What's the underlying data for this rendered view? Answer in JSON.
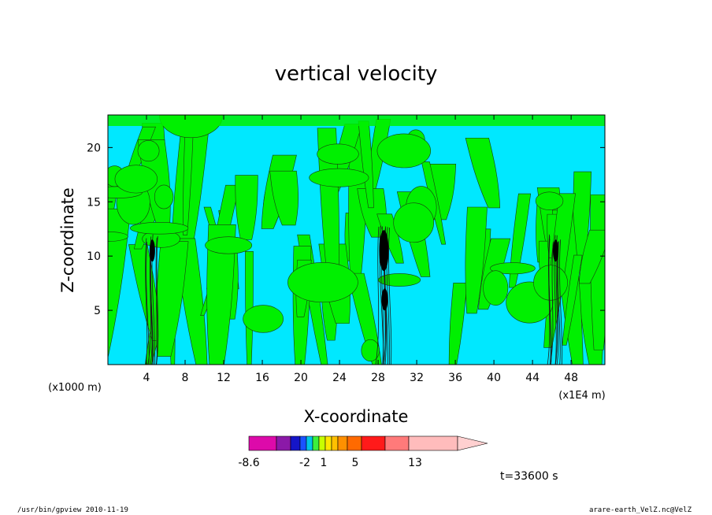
{
  "chart_data": {
    "type": "heatmap",
    "title": "vertical velocity",
    "xlabel": "X-coordinate",
    "ylabel": "Z-coordinate",
    "x_unit_left": "(x1000 m)",
    "x_unit_right": "(x1E4 m)",
    "xlim": [
      0,
      51.5
    ],
    "ylim": [
      0,
      23
    ],
    "x_ticks": [
      4,
      8,
      12,
      16,
      20,
      24,
      28,
      32,
      36,
      40,
      44,
      48
    ],
    "y_ticks": [
      5,
      10,
      15,
      20
    ],
    "levels": [
      -8.6,
      -6,
      -4,
      -2,
      -1,
      0,
      1,
      2,
      3,
      5,
      7,
      9,
      11,
      13,
      17
    ],
    "level_colors": [
      "#dd0aaa",
      "#8b19a8",
      "#1515c8",
      "#1a53ff",
      "#00c6e8",
      "#3cf03c",
      "#c8ff00",
      "#ffe600",
      "#ffc000",
      "#ff9000",
      "#ff6a00",
      "#ff1a1a",
      "#ff7a7a",
      "#ffbcbc",
      "#ffd0d0"
    ],
    "colorbar_labels": [
      "-8.6",
      "-2",
      "1",
      "5",
      "13"
    ],
    "dominant_colors": {
      "negative": "#00e8ff",
      "positive": "#00f000",
      "strong": "#000000"
    },
    "updraft_columns_x": [
      4.6,
      28.6,
      46.4
    ],
    "time_label": "t=33600 s"
  },
  "footer": {
    "left": "/usr/bin/gpview   2010-11-19",
    "right": "arare-earth_VelZ.nc@VelZ"
  }
}
